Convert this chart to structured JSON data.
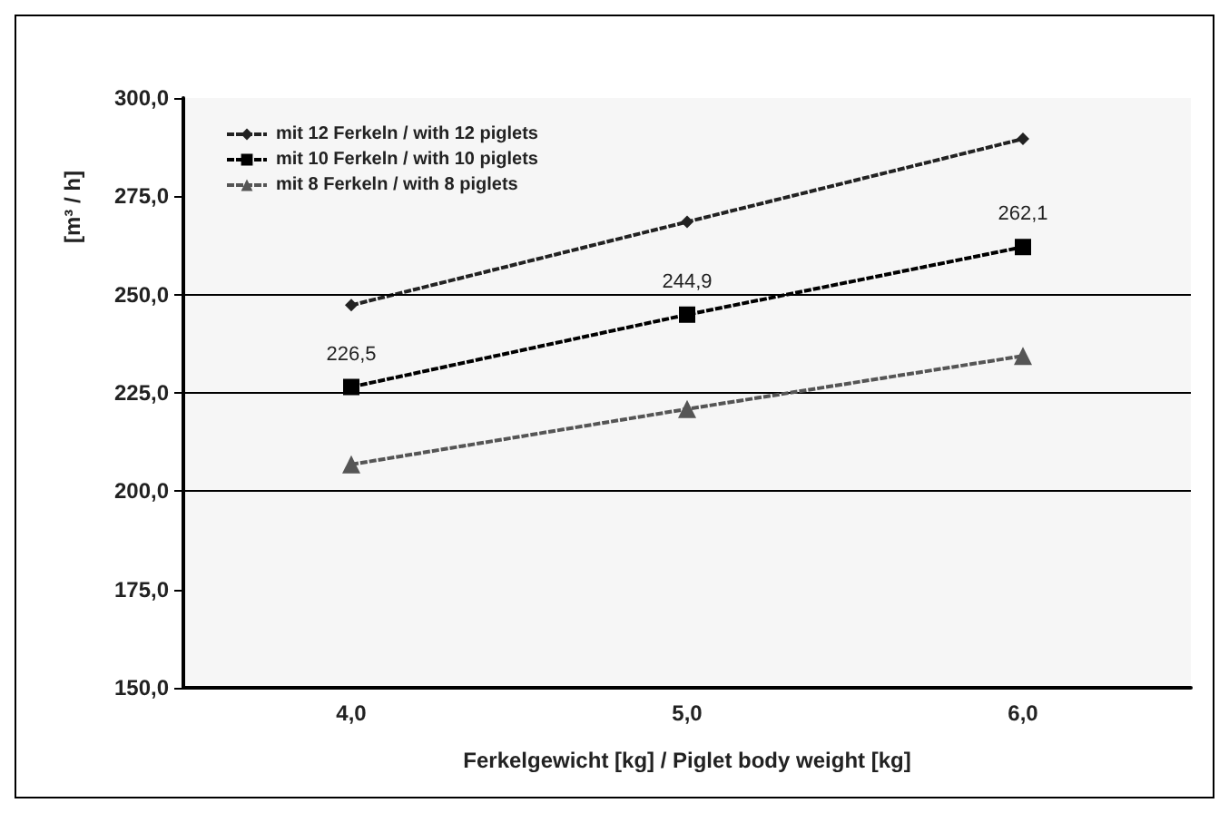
{
  "chart_data": {
    "type": "line",
    "xlabel": "Ferkelgewicht [kg] / Piglet body weight [kg]",
    "ylabel": "[m³ / h]",
    "categories": [
      "4,0",
      "5,0",
      "6,0"
    ],
    "series": [
      {
        "name": "mit 12 Ferkeln / with 12 piglets",
        "color": "#222222",
        "marker": "diamond",
        "values": [
          247.3,
          268.5,
          289.6
        ]
      },
      {
        "name": "mit 10 Ferkeln / with 10 piglets",
        "color": "#000000",
        "marker": "square",
        "values": [
          226.5,
          244.9,
          262.1
        ],
        "value_labels": [
          "226,5",
          "244,9",
          "262,1"
        ]
      },
      {
        "name": "mit 8 Ferkeln / with 8 piglets",
        "color": "#555555",
        "marker": "triangle",
        "values": [
          206.8,
          220.9,
          234.4
        ]
      }
    ],
    "ylim": [
      150,
      300
    ],
    "yticks": [
      {
        "value": 150,
        "label": "150,0"
      },
      {
        "value": 175,
        "label": "175,0"
      },
      {
        "value": 200,
        "label": "200,0"
      },
      {
        "value": 225,
        "label": "225,0"
      },
      {
        "value": 250,
        "label": "250,0"
      },
      {
        "value": 275,
        "label": "275,0"
      },
      {
        "value": 300,
        "label": "300,0"
      }
    ],
    "ref_lines": [
      {
        "axis": "y",
        "value": 200,
        "color": "#000000"
      },
      {
        "axis": "y",
        "value": 225,
        "color": "#000000"
      },
      {
        "axis": "y",
        "value": 250,
        "color": "#000000"
      }
    ],
    "legend": "top left",
    "grid": false,
    "line_style": "dashed"
  }
}
